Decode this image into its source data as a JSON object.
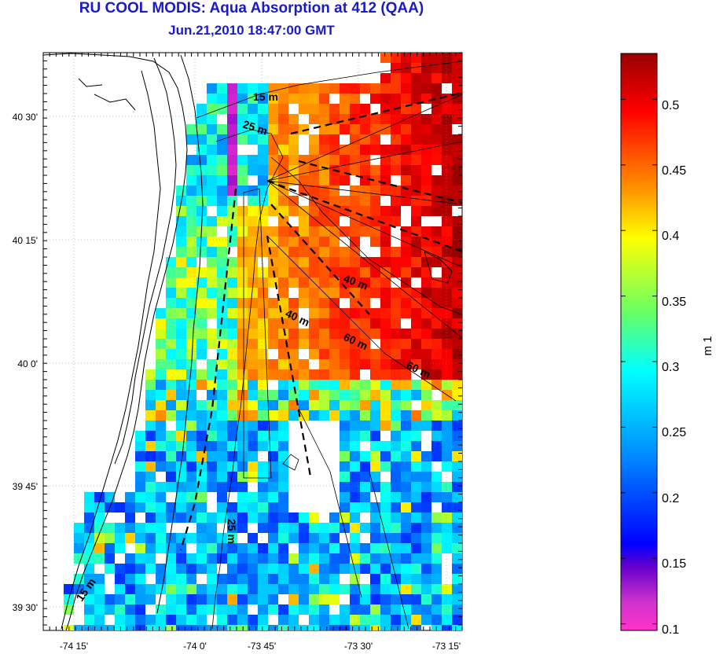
{
  "title": "RU COOL MODIS: Aqua Absorption at 412 (QAA)",
  "subtitle": "Jun.21,2010 18:47:00 GMT",
  "map": {
    "lon_ticks": [
      "-74 15'",
      "-74 0'",
      "-73 45'",
      "-73 30'",
      "-73 15'"
    ],
    "lat_ticks": [
      "40 30'",
      "40 15'",
      "40 0'",
      "39 45'",
      "39 30'"
    ],
    "grid": "dotted"
  },
  "isobath_labels": [
    "15 m",
    "25 m",
    "40 m",
    "40 m",
    "60 m",
    "60 m",
    "25 m",
    "15 m"
  ],
  "colorbar": {
    "unit_label": "m 1",
    "ticks": [
      "0.5",
      "0.45",
      "0.4",
      "0.35",
      "0.3",
      "0.25",
      "0.2",
      "0.15",
      "0.1"
    ],
    "range": [
      0.095,
      0.535
    ],
    "colormap": [
      "#ff33cc",
      "#6600cc",
      "#0000ff",
      "#0099ff",
      "#00ffff",
      "#66ff66",
      "#ffff00",
      "#ff9900",
      "#ff0000",
      "#990000"
    ]
  }
}
